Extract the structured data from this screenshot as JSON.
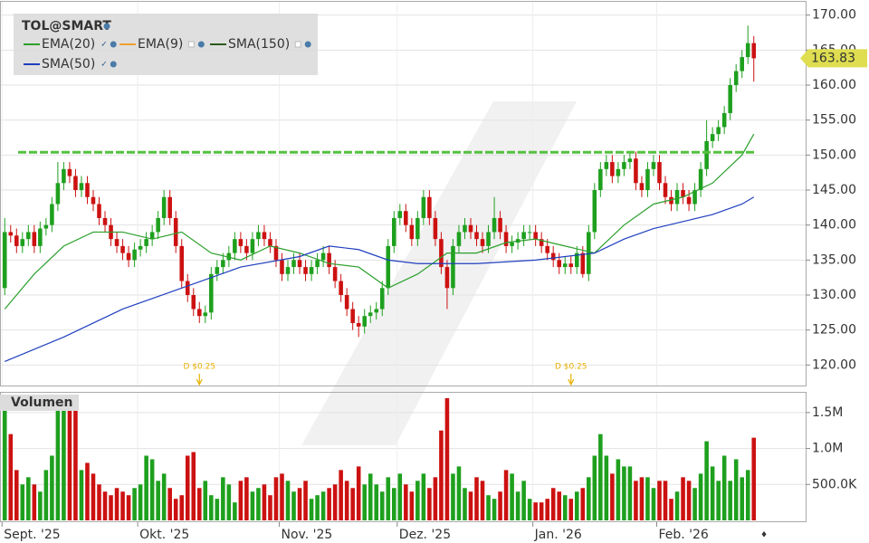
{
  "chart_data": [
    {
      "type": "candlestick",
      "title": "TOL@SMART",
      "open": [
        131,
        139,
        138.5,
        137,
        138,
        139,
        137,
        139.5,
        140,
        143,
        146,
        148,
        147,
        145,
        146,
        144,
        143,
        141,
        140,
        138,
        137,
        136,
        135,
        136.5,
        137,
        138,
        139,
        141,
        144,
        141,
        137,
        132,
        130,
        128,
        127,
        127.5,
        133,
        134,
        135,
        136,
        138,
        137,
        136,
        138,
        139,
        138,
        137,
        135,
        133,
        134,
        135,
        134,
        133,
        134,
        135,
        136,
        134,
        132,
        130,
        128,
        126,
        125.5,
        127,
        127.5,
        128,
        131,
        137,
        141,
        142,
        140,
        138,
        141,
        144,
        141,
        138,
        134,
        131,
        137,
        139,
        140,
        139,
        138,
        137,
        139,
        141,
        139,
        137,
        137.5,
        138,
        139,
        139,
        138,
        137,
        136,
        135,
        134,
        134.5,
        134,
        136,
        133,
        139,
        145,
        148,
        149,
        147,
        148,
        149,
        149.5,
        146,
        145,
        148,
        149,
        146,
        144,
        143,
        145,
        144,
        143,
        145,
        148,
        152,
        153,
        154,
        156,
        160,
        162,
        164,
        166
      ],
      "high": [
        141,
        140,
        139.5,
        139,
        140,
        140,
        140.5,
        141,
        144,
        149,
        149,
        149,
        148,
        147,
        147,
        145,
        144,
        142,
        141,
        139,
        138,
        137,
        137.5,
        138,
        139,
        140,
        142,
        145,
        145,
        142,
        138,
        133,
        131,
        129,
        128.5,
        134,
        135,
        136,
        137,
        139,
        139,
        138,
        139,
        140,
        140,
        139,
        138,
        136,
        135,
        136,
        136,
        135,
        135,
        136,
        137,
        137,
        135,
        133,
        131,
        129,
        127,
        128,
        128.5,
        129,
        132,
        138,
        142,
        143,
        143,
        141,
        142,
        145,
        145,
        142,
        139,
        135,
        138,
        140,
        141,
        141,
        140,
        139,
        140,
        144,
        142,
        140,
        138.5,
        139,
        140,
        140,
        140,
        139,
        138,
        137,
        136,
        135.5,
        135.5,
        137,
        137,
        140,
        146,
        149,
        150,
        150,
        149,
        150,
        150.5,
        150.5,
        147,
        149,
        150,
        150,
        147,
        145,
        146,
        146,
        145,
        146,
        149,
        155,
        154,
        155,
        157,
        161,
        163,
        165,
        168.5,
        167
      ],
      "low": [
        130,
        137.5,
        136,
        136,
        137,
        136,
        136,
        138.5,
        139,
        142,
        145,
        146,
        144,
        144,
        143,
        142,
        140,
        139,
        137,
        136,
        135,
        134,
        134,
        135.5,
        136,
        137,
        138,
        140,
        140,
        136,
        131,
        129,
        127,
        126,
        126,
        126.5,
        132,
        133,
        134,
        135,
        136,
        135,
        135,
        137,
        137,
        136,
        134,
        132,
        132,
        133,
        133,
        132,
        132,
        133,
        134,
        133,
        131,
        129,
        127,
        125,
        124,
        124.5,
        126,
        126.5,
        127,
        130,
        136,
        140,
        139,
        137,
        137,
        140,
        140,
        137,
        133,
        128,
        130,
        136,
        138,
        138,
        137,
        136,
        136,
        138,
        138,
        136,
        136,
        136.5,
        137,
        138,
        137,
        136,
        135,
        134,
        133,
        133,
        133,
        133,
        132.5,
        132,
        138,
        144,
        147,
        146,
        146,
        147,
        148,
        145,
        144,
        144,
        147,
        145,
        143,
        142,
        142,
        143,
        142,
        142,
        144,
        147,
        151,
        152,
        153,
        155,
        159,
        161,
        163,
        160.5
      ],
      "close": [
        139,
        138.5,
        137,
        138,
        139,
        137,
        139.5,
        140,
        143,
        146,
        148,
        147,
        145,
        146,
        144,
        143,
        141,
        140,
        138,
        137,
        136,
        135,
        136.5,
        137,
        138,
        139,
        141,
        144,
        141,
        137,
        132,
        130,
        128,
        127,
        127.5,
        133,
        134,
        135,
        136,
        138,
        137,
        136,
        138,
        139,
        138,
        137,
        135,
        133,
        134,
        135,
        134,
        133,
        134,
        135,
        136,
        134,
        132,
        130,
        128,
        126,
        125.5,
        127,
        127.5,
        128,
        131,
        137,
        141,
        142,
        140,
        138,
        141,
        144,
        141,
        138,
        134,
        131,
        137,
        139,
        140,
        139,
        138,
        137,
        139,
        141,
        139,
        137,
        137.5,
        138,
        139,
        139,
        138,
        137,
        136,
        135,
        134,
        134.5,
        134,
        136,
        133,
        139,
        145,
        148,
        149,
        147,
        148,
        149,
        149.5,
        146,
        145,
        148,
        149,
        146,
        144,
        143,
        145,
        144,
        143,
        145,
        148,
        152,
        153,
        154,
        156,
        160,
        162,
        164,
        166,
        163.83
      ],
      "up_color": "#1ea01e",
      "down_color": "#cc1111",
      "series": [
        {
          "name": "EMA(20)",
          "color": "#2ca02c",
          "x": [
            0,
            5,
            10,
            15,
            20,
            25,
            30,
            35,
            40,
            45,
            50,
            55,
            60,
            65,
            70,
            75,
            80,
            85,
            90,
            95,
            100,
            105,
            110,
            115,
            120,
            125,
            127
          ],
          "values": [
            128,
            133,
            137,
            139,
            139,
            138,
            139,
            136,
            135,
            137,
            136,
            134.5,
            134,
            131,
            133,
            136,
            136,
            137.5,
            138,
            137,
            136,
            140,
            143,
            144,
            146,
            150,
            153
          ]
        },
        {
          "name": "EMA(9)",
          "color": "#f0a030"
        },
        {
          "name": "SMA(150)",
          "color": "#2d5a1e"
        },
        {
          "name": "SMA(50)",
          "color": "#1f3fbf",
          "x": [
            0,
            10,
            20,
            30,
            40,
            50,
            55,
            60,
            65,
            70,
            80,
            90,
            95,
            100,
            105,
            110,
            115,
            120,
            125,
            127
          ],
          "values": [
            120.5,
            124,
            128,
            131,
            134,
            135.5,
            137,
            136.5,
            135,
            134.5,
            134.5,
            135,
            135.5,
            136,
            138,
            139.5,
            140.5,
            141.5,
            143,
            144
          ]
        }
      ],
      "hline": {
        "value": 150.4,
        "color": "#55c040"
      },
      "last_price": 163.83,
      "annotations": [
        {
          "label": "D $0.25",
          "x": 33,
          "color": "#e8b000"
        },
        {
          "label": "D $0.25",
          "x": 96,
          "color": "#e8b000"
        }
      ],
      "xlim": [
        -0.5,
        127.5
      ],
      "ylim": [
        117.2,
        171.9
      ],
      "yticks": [
        {
          "value": 120,
          "label": "120.00"
        },
        {
          "value": 125,
          "label": "125.00"
        },
        {
          "value": 130,
          "label": "130.00"
        },
        {
          "value": 135,
          "label": "135.00"
        },
        {
          "value": 140,
          "label": "140.00"
        },
        {
          "value": 145,
          "label": "145.00"
        },
        {
          "value": 150,
          "label": "150.00"
        },
        {
          "value": 155,
          "label": "155.00"
        },
        {
          "value": 160,
          "label": "160.00"
        },
        {
          "value": 165,
          "label": "165.00"
        },
        {
          "value": 170,
          "label": "170.00"
        }
      ],
      "grid": true
    },
    {
      "type": "bar",
      "title": "Volumen",
      "values": [
        1700000,
        1200000,
        700000,
        500000,
        600000,
        500000,
        400000,
        700000,
        900000,
        1650000,
        1600000,
        1700000,
        1550000,
        700000,
        800000,
        650000,
        500000,
        400000,
        350000,
        450000,
        400000,
        350000,
        450000,
        500000,
        900000,
        850000,
        550000,
        650000,
        450000,
        300000,
        350000,
        900000,
        950000,
        450000,
        550000,
        350000,
        300000,
        600000,
        500000,
        250000,
        550000,
        600000,
        400000,
        450000,
        500000,
        350000,
        600000,
        650000,
        550000,
        400000,
        450000,
        550000,
        300000,
        350000,
        400000,
        450000,
        500000,
        700000,
        550000,
        450000,
        750000,
        500000,
        650000,
        500000,
        400000,
        600000,
        450000,
        650000,
        500000,
        400000,
        550000,
        650000,
        450000,
        600000,
        1250000,
        1700000,
        650000,
        750000,
        450000,
        400000,
        600000,
        550000,
        350000,
        300000,
        400000,
        700000,
        650000,
        400000,
        550000,
        300000,
        250000,
        250000,
        300000,
        450000,
        400000,
        350000,
        300000,
        400000,
        450000,
        600000,
        900000,
        1200000,
        900000,
        650000,
        850000,
        750000,
        750000,
        550000,
        600000,
        600000,
        450000,
        550000,
        550000,
        300000,
        400000,
        600000,
        550000,
        450000,
        650000,
        1100000,
        750000,
        550000,
        900000,
        550000,
        850000,
        600000,
        700000,
        1150000
      ],
      "xlim": [
        -0.5,
        127.5
      ],
      "xticks": [
        {
          "value": 0,
          "label": "Sept. '25"
        },
        {
          "value": 23,
          "label": "Okt. '25"
        },
        {
          "value": 47,
          "label": "Nov. '25"
        },
        {
          "value": 67,
          "label": "Dez. '25"
        },
        {
          "value": 90,
          "label": "Jan. '26"
        },
        {
          "value": 111,
          "label": "Feb. '26"
        }
      ],
      "ylim": [
        0,
        1775000
      ],
      "yticks": [
        {
          "value": 500000,
          "label": "500.0K"
        },
        {
          "value": 1000000,
          "label": "1.0M"
        },
        {
          "value": 1500000,
          "label": "1.5M"
        }
      ],
      "grid": true
    }
  ]
}
